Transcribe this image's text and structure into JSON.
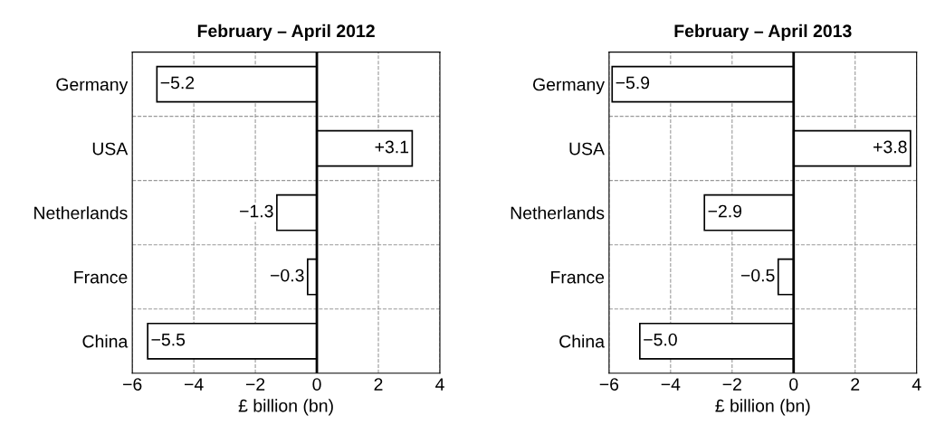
{
  "chart_data": [
    {
      "type": "bar",
      "orientation": "horizontal",
      "title": "February – April 2012",
      "xlabel": "£ billion (bn)",
      "categories": [
        "Germany",
        "USA",
        "Netherlands",
        "France",
        "China"
      ],
      "values": [
        -5.2,
        3.1,
        -1.3,
        -0.3,
        -5.5
      ],
      "color": "#ffffff",
      "value_labels": [
        "−5.2",
        "+3.1",
        "−1.3",
        "−0.3",
        "−5.5"
      ],
      "xlim": [
        -6,
        4
      ],
      "xticks": [
        {
          "value": -6,
          "label": "−6"
        },
        {
          "value": -4,
          "label": "−4"
        },
        {
          "value": -2,
          "label": "−2"
        },
        0,
        2,
        4
      ],
      "ref_lines": [
        {
          "axis": "x",
          "value": 0,
          "label": null,
          "color": "#000000"
        }
      ],
      "grid": true,
      "legend": false
    },
    {
      "type": "bar",
      "orientation": "horizontal",
      "title": "February – April 2013",
      "xlabel": "£ billion (bn)",
      "categories": [
        "Germany",
        "USA",
        "Netherlands",
        "France",
        "China"
      ],
      "values": [
        -5.9,
        3.8,
        -2.9,
        -0.5,
        -5.0
      ],
      "color": "#ffffff",
      "value_labels": [
        "−5.9",
        "+3.8",
        "−2.9",
        "−0.5",
        "−5.0"
      ],
      "xlim": [
        -6,
        4
      ],
      "xticks": [
        {
          "value": -6,
          "label": "−6"
        },
        {
          "value": -4,
          "label": "−4"
        },
        {
          "value": -2,
          "label": "−2"
        },
        0,
        2,
        4
      ],
      "ref_lines": [
        {
          "axis": "x",
          "value": 0,
          "label": null,
          "color": "#000000"
        }
      ],
      "grid": true,
      "legend": false
    }
  ]
}
